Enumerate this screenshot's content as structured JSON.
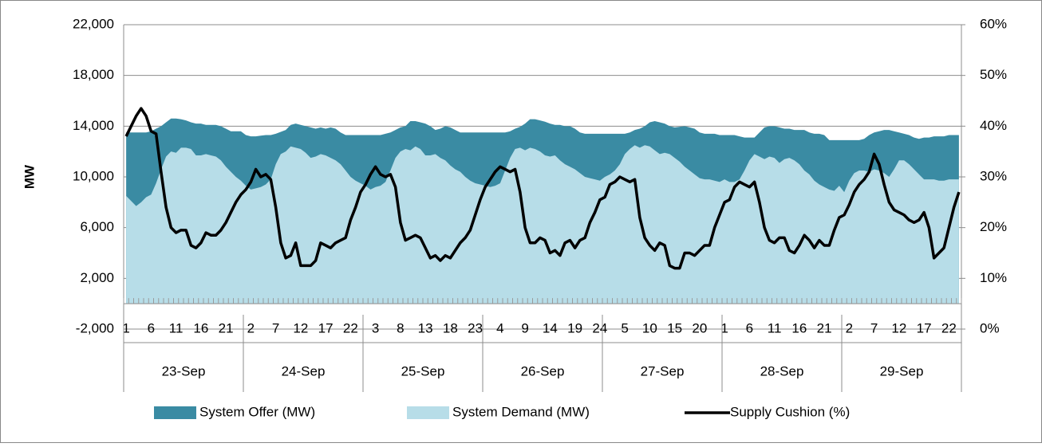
{
  "chart_data": {
    "type": "area",
    "y_label": "MW",
    "ylim": [
      -2000,
      22000
    ],
    "yticks": [
      {
        "value": -2000,
        "label": "-2,000"
      },
      {
        "value": 2000,
        "label": "2,000"
      },
      {
        "value": 6000,
        "label": "6,000"
      },
      {
        "value": 10000,
        "label": "10,000"
      },
      {
        "value": 14000,
        "label": "14,000"
      },
      {
        "value": 18000,
        "label": "18,000"
      },
      {
        "value": 22000,
        "label": "22,000"
      }
    ],
    "y2lim": [
      0,
      60
    ],
    "y2ticks": [
      {
        "value": 0,
        "label": "0%"
      },
      {
        "value": 10,
        "label": "10%"
      },
      {
        "value": 20,
        "label": "20%"
      },
      {
        "value": 30,
        "label": "30%"
      },
      {
        "value": 40,
        "label": "40%"
      },
      {
        "value": 50,
        "label": "50%"
      },
      {
        "value": 60,
        "label": "60%"
      }
    ],
    "grid": true,
    "legend": "bottom",
    "day_groups": [
      "23-Sep",
      "24-Sep",
      "25-Sep",
      "26-Sep",
      "27-Sep",
      "28-Sep",
      "29-Sep"
    ],
    "categories": [
      "1",
      null,
      null,
      null,
      null,
      "6",
      null,
      null,
      null,
      null,
      "11",
      null,
      null,
      null,
      null,
      "16",
      null,
      null,
      null,
      null,
      "21",
      null,
      null,
      null,
      null,
      "2",
      null,
      null,
      null,
      null,
      "7",
      null,
      null,
      null,
      null,
      "12",
      null,
      null,
      null,
      null,
      "17",
      null,
      null,
      null,
      null,
      "22",
      null,
      null,
      null,
      null,
      "3",
      null,
      null,
      null,
      null,
      "8",
      null,
      null,
      null,
      null,
      "13",
      null,
      null,
      null,
      null,
      "18",
      null,
      null,
      null,
      null,
      "23",
      null,
      null,
      null,
      null,
      "4",
      null,
      null,
      null,
      null,
      "9",
      null,
      null,
      null,
      null,
      "14",
      null,
      null,
      null,
      null,
      "19",
      null,
      null,
      null,
      null,
      "24",
      null,
      null,
      null,
      null,
      "5",
      null,
      null,
      null,
      null,
      "10",
      null,
      null,
      null,
      null,
      "15",
      null,
      null,
      null,
      null,
      "20",
      null,
      null,
      null,
      null,
      "1",
      null,
      null,
      null,
      null,
      "6",
      null,
      null,
      null,
      null,
      "11",
      null,
      null,
      null,
      null,
      "16",
      null,
      null,
      null,
      null,
      "21",
      null,
      null,
      null,
      null,
      "2",
      null,
      null,
      null,
      null,
      "7",
      null,
      null,
      null,
      null,
      "12",
      null,
      null,
      null,
      null,
      "17",
      null,
      null,
      null,
      null,
      "22",
      null,
      null
    ],
    "series": [
      {
        "name": "System Offer (MW)",
        "type": "area",
        "color": "#3a8ba3",
        "values": [
          13500,
          13500,
          13500,
          13500,
          13500,
          13600,
          13800,
          14000,
          14300,
          14600,
          14600,
          14550,
          14450,
          14300,
          14200,
          14200,
          14100,
          14100,
          14100,
          14000,
          13800,
          13600,
          13600,
          13600,
          13300,
          13200,
          13200,
          13250,
          13300,
          13300,
          13400,
          13550,
          13700,
          14100,
          14200,
          14100,
          14000,
          13900,
          13800,
          13900,
          13800,
          13900,
          13800,
          13500,
          13300,
          13300,
          13300,
          13300,
          13300,
          13300,
          13300,
          13300,
          13400,
          13500,
          13700,
          13900,
          14000,
          14400,
          14400,
          14300,
          14200,
          14000,
          13700,
          13800,
          14000,
          13900,
          13700,
          13500,
          13500,
          13500,
          13500,
          13500,
          13500,
          13500,
          13500,
          13500,
          13500,
          13600,
          13800,
          13950,
          14200,
          14550,
          14550,
          14450,
          14350,
          14200,
          14100,
          14100,
          14000,
          14000,
          13800,
          13500,
          13400,
          13400,
          13400,
          13400,
          13400,
          13400,
          13400,
          13400,
          13400,
          13500,
          13700,
          13800,
          14000,
          14300,
          14400,
          14300,
          14200,
          14000,
          13900,
          13950,
          14000,
          13900,
          13800,
          13500,
          13400,
          13400,
          13400,
          13300,
          13300,
          13300,
          13300,
          13200,
          13100,
          13100,
          13100,
          13500,
          13900,
          14000,
          14000,
          13900,
          13800,
          13800,
          13700,
          13700,
          13700,
          13500,
          13400,
          13400,
          13300,
          12900,
          12900,
          12900,
          12900,
          12900,
          12900,
          12900,
          13000,
          13300,
          13500,
          13600,
          13700,
          13700,
          13600,
          13500,
          13400,
          13300,
          13100,
          13000,
          13100,
          13100,
          13200,
          13200,
          13200,
          13300,
          13300,
          13300
        ]
      },
      {
        "name": "System Demand (MW)",
        "type": "area",
        "color": "#b7dde8",
        "values": [
          8500,
          8100,
          7700,
          8000,
          8400,
          8600,
          9500,
          10600,
          11600,
          12000,
          11900,
          12300,
          12300,
          12200,
          11700,
          11700,
          11800,
          11700,
          11600,
          11300,
          10800,
          10400,
          10000,
          9700,
          9300,
          9000,
          9100,
          9200,
          9400,
          9800,
          11000,
          11800,
          12000,
          12400,
          12300,
          12200,
          11900,
          11500,
          11600,
          11800,
          11700,
          11500,
          11300,
          11000,
          10500,
          10000,
          9700,
          9500,
          9300,
          9000,
          9200,
          9300,
          9600,
          10500,
          11500,
          12000,
          12200,
          12100,
          12400,
          12200,
          11700,
          11700,
          11800,
          11500,
          11300,
          10900,
          10600,
          10400,
          10000,
          9700,
          9500,
          9400,
          9300,
          9200,
          9300,
          9500,
          10500,
          11500,
          12200,
          12300,
          12100,
          12300,
          12200,
          12000,
          11700,
          11600,
          11700,
          11300,
          11000,
          10800,
          10600,
          10300,
          10000,
          9900,
          9800,
          9700,
          10000,
          10200,
          10500,
          11000,
          11800,
          12200,
          12500,
          12300,
          12500,
          12400,
          12100,
          11800,
          11900,
          11800,
          11500,
          11200,
          10800,
          10500,
          10200,
          9900,
          9800,
          9800,
          9700,
          9600,
          9800,
          9600,
          9600,
          9800,
          10500,
          11300,
          11800,
          11600,
          11400,
          11600,
          11500,
          11100,
          11400,
          11500,
          11300,
          11000,
          10500,
          10200,
          9700,
          9400,
          9200,
          9000,
          8900,
          9300,
          8800,
          9700,
          10300,
          10500,
          10500,
          10400,
          10600,
          10500,
          10300,
          10000,
          10600,
          11300,
          11300,
          11000,
          10600,
          10200,
          9800,
          9800,
          9800,
          9700,
          9700,
          9800,
          9800,
          9800
        ]
      },
      {
        "name": "Supply Cushion (%)",
        "type": "line",
        "axis": "y2",
        "color": "#000000",
        "values": [
          38,
          40,
          42,
          43.5,
          42,
          39,
          38.5,
          31,
          24,
          20,
          19,
          19.5,
          19.5,
          16.5,
          16,
          17,
          19,
          18.5,
          18.5,
          19.5,
          21,
          23,
          25,
          26.5,
          27.5,
          29,
          31.5,
          30,
          30.5,
          29.5,
          24,
          17,
          14,
          14.5,
          17,
          12.5,
          12.5,
          12.5,
          13.5,
          17,
          16.5,
          16,
          17,
          17.5,
          18,
          21.5,
          24,
          27,
          28.5,
          30.5,
          32,
          30.5,
          30,
          30.5,
          28,
          21,
          17.5,
          18,
          18.5,
          18,
          16,
          14,
          14.5,
          13.5,
          14.5,
          14,
          15.5,
          17,
          18,
          19.5,
          22.5,
          25.5,
          28,
          29.5,
          31,
          32,
          31.5,
          31,
          31.5,
          27,
          20,
          17,
          17,
          18,
          17.5,
          15,
          15.5,
          14.5,
          17,
          17.5,
          16,
          17.5,
          18,
          21,
          23,
          25.5,
          26,
          28.5,
          29,
          30,
          29.5,
          29,
          29.5,
          22,
          18,
          16.5,
          15.5,
          17,
          16.5,
          12.5,
          12,
          12,
          15,
          15,
          14.5,
          15.5,
          16.5,
          16.5,
          20,
          22.5,
          25,
          25.5,
          28,
          29,
          28.5,
          28,
          29,
          25,
          20,
          17.5,
          17,
          18,
          18,
          15.5,
          15,
          16.5,
          18.5,
          17.5,
          16,
          17.5,
          16.5,
          16.5,
          19.5,
          22,
          22.5,
          24.5,
          27,
          28.5,
          29.5,
          31,
          34.5,
          32.5,
          28.5,
          25,
          23.5,
          23,
          22.5,
          21.5,
          21,
          21.5,
          23,
          20,
          14,
          15,
          16,
          20,
          24,
          27
        ]
      }
    ]
  }
}
